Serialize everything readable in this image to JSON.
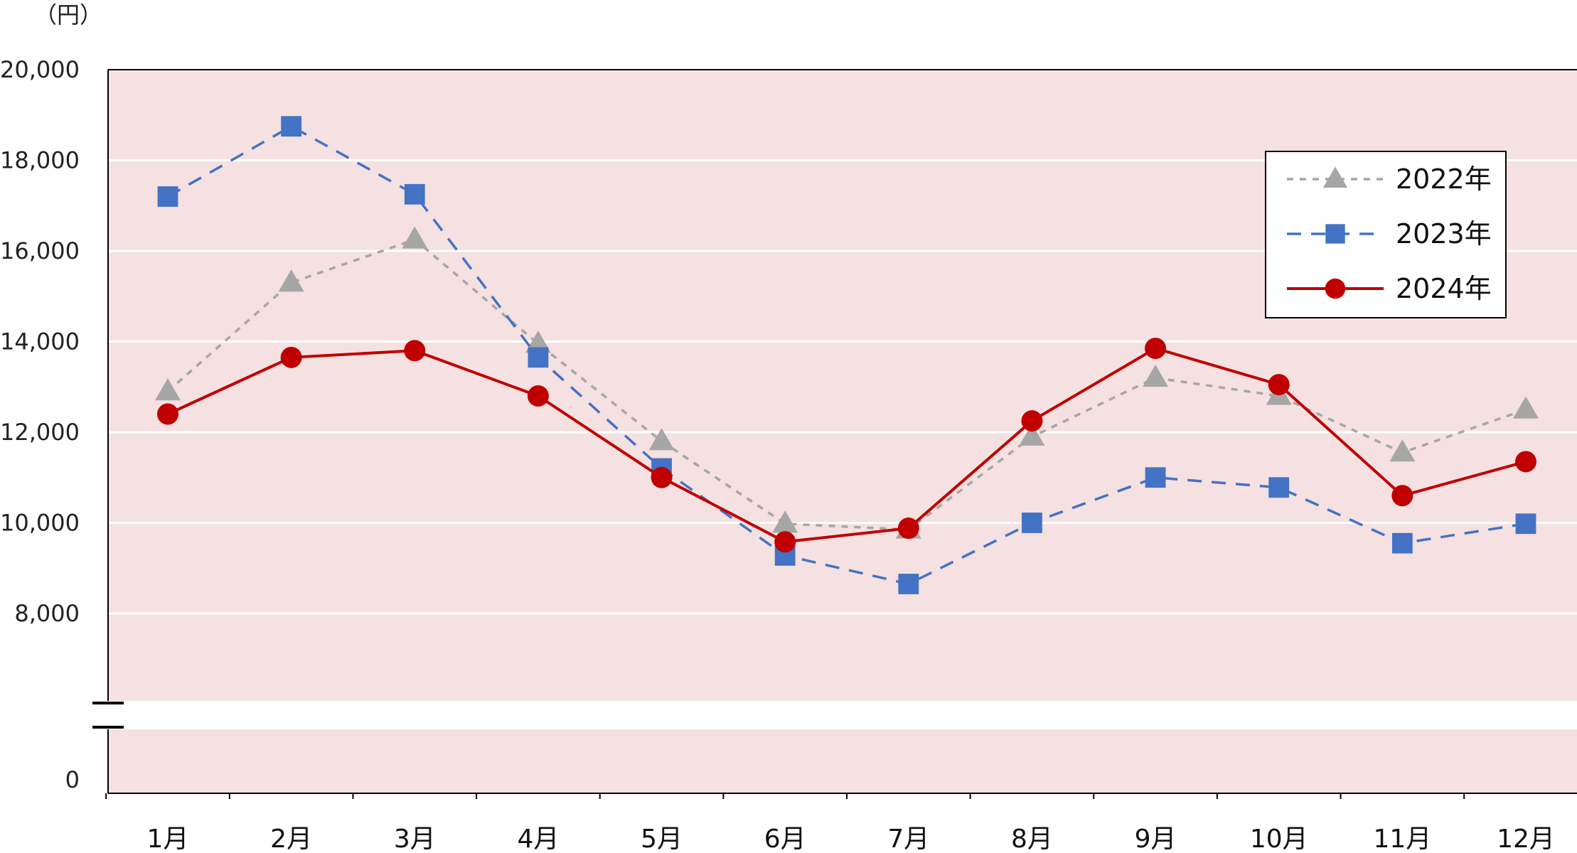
{
  "chart_data": {
    "type": "line",
    "unit_label": "（円）",
    "categories": [
      "1月",
      "2月",
      "3月",
      "4月",
      "5月",
      "6月",
      "7月",
      "8月",
      "9月",
      "10月",
      "11月",
      "12月"
    ],
    "yticks": [
      "0",
      "8,000",
      "10,000",
      "12,000",
      "14,000",
      "16,000",
      "18,000",
      "20,000"
    ],
    "ylim": [
      0,
      20000
    ],
    "axis_break": true,
    "grid": true,
    "legend_position": "top-right",
    "plot_background": "#f5e1e1",
    "series": [
      {
        "name": "2022年",
        "marker": "triangle",
        "line": "dotted",
        "color": "#a6a6a6",
        "values": [
          12900,
          15300,
          16250,
          13950,
          11800,
          9980,
          9850,
          11900,
          13200,
          12800,
          11550,
          12500
        ]
      },
      {
        "name": "2023年",
        "marker": "square",
        "line": "dashed",
        "color": "#4472c4",
        "values": [
          17200,
          18750,
          17250,
          13650,
          11200,
          9280,
          8650,
          10000,
          11000,
          10780,
          9550,
          9980
        ]
      },
      {
        "name": "2024年",
        "marker": "circle",
        "line": "solid",
        "color": "#c00000",
        "values": [
          12400,
          13650,
          13800,
          12800,
          11000,
          9580,
          9880,
          12250,
          13850,
          13050,
          10600,
          11350
        ]
      }
    ]
  }
}
